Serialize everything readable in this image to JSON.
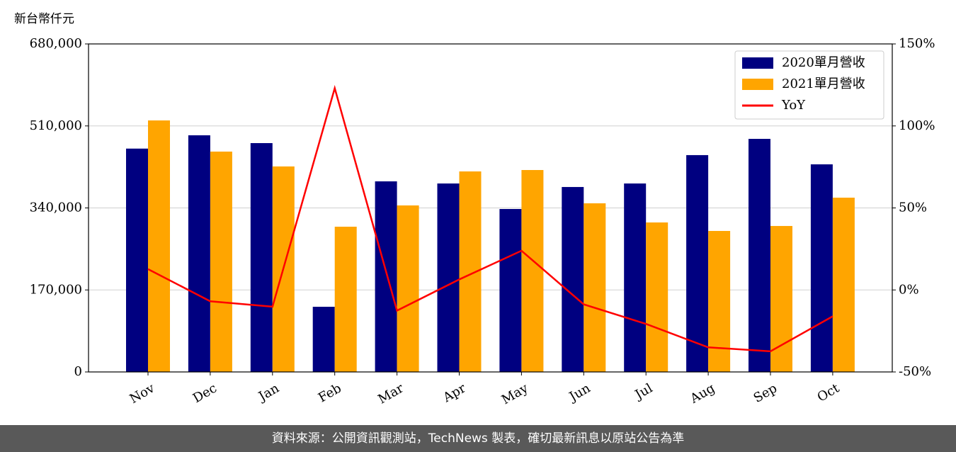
{
  "chart_data": {
    "type": "bar_line",
    "y_label": "新台幣仟元",
    "categories": [
      "Nov",
      "Dec",
      "Jan",
      "Feb",
      "Mar",
      "Apr",
      "May",
      "Jun",
      "Jul",
      "Aug",
      "Sep",
      "Oct"
    ],
    "series": [
      {
        "name": "2020單月營收",
        "color": "#000080",
        "type": "bar",
        "values": [
          463000,
          490600,
          474400,
          135100,
          395100,
          390700,
          337800,
          383400,
          390700,
          449500,
          483200,
          430400
        ]
      },
      {
        "name": "2021單月營收",
        "color": "#ffa500",
        "type": "bar",
        "values": [
          521400,
          456800,
          426000,
          301100,
          345200,
          415700,
          418600,
          349600,
          309900,
          292300,
          302600,
          361300
        ]
      },
      {
        "name": "YoY",
        "color": "#ff0000",
        "type": "line",
        "axis": "y2",
        "values": [
          12.7,
          -6.9,
          -10.2,
          123.0,
          -12.6,
          6.4,
          23.9,
          -8.8,
          -20.7,
          -35.0,
          -37.4,
          -16.1
        ]
      }
    ],
    "ylim": [
      0,
      680000
    ],
    "yticks": [
      0,
      {
        "value": 170000,
        "label": "170,000"
      },
      {
        "value": 340000,
        "label": "340,000"
      },
      {
        "value": 510000,
        "label": "510,000"
      },
      {
        "value": 680000,
        "label": "680,000"
      }
    ],
    "y2lim": [
      -50,
      150
    ],
    "y2ticks": [
      {
        "value": -50,
        "label": "-50%"
      },
      {
        "value": 0,
        "label": "0%"
      },
      {
        "value": 50,
        "label": "50%"
      },
      {
        "value": 100,
        "label": "100%"
      },
      {
        "value": 150,
        "label": "150%"
      }
    ],
    "grid": true,
    "legend": "upper right"
  },
  "footer": "資料來源：公開資訊觀測站，TechNews 製表，確切最新訊息以原站公告為準"
}
